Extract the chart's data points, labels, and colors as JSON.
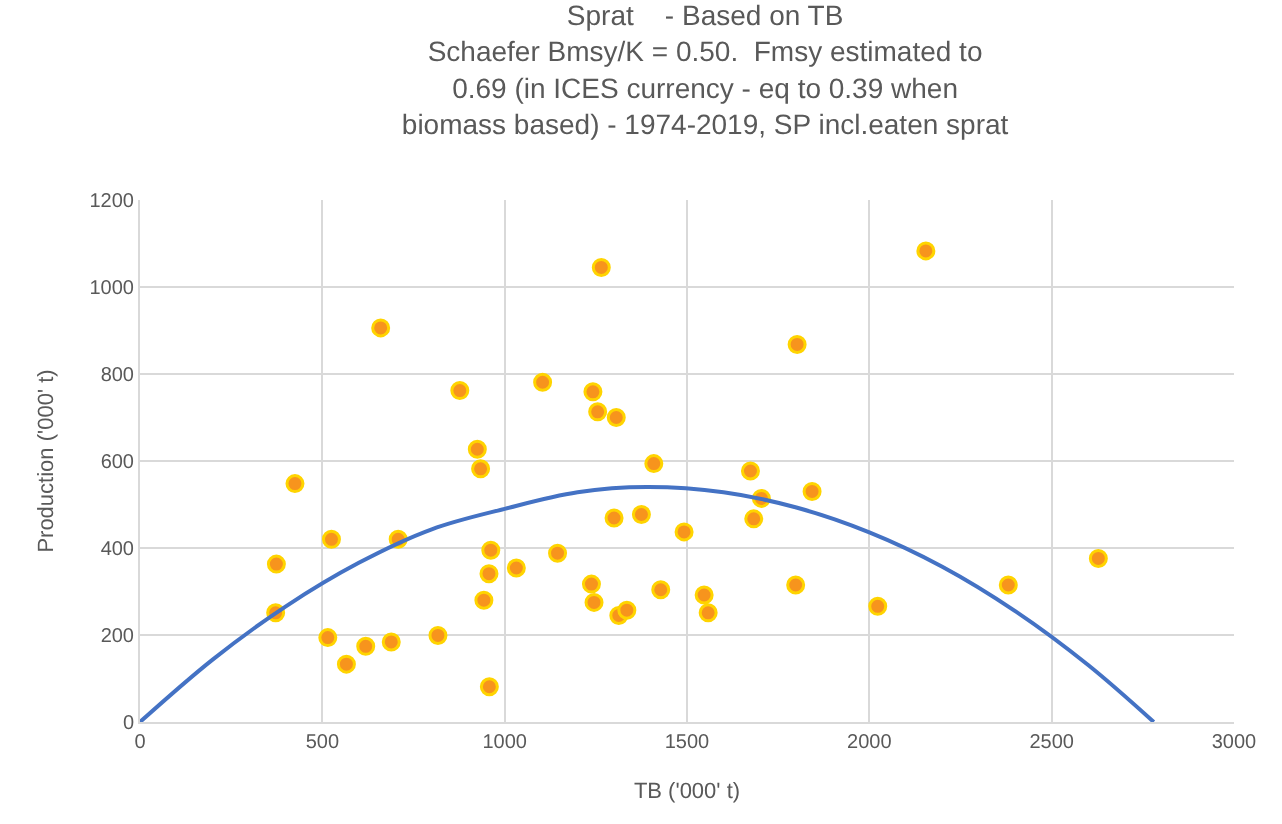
{
  "chart_data": {
    "type": "scatter",
    "title": "Sprat    - Based on TB\nSchaefer Bmsy/K = 0.50.  Fmsy estimated to\n0.69 (in ICES currency - eq to 0.39 when\nbiomass based) - 1974-2019, SP incl.eaten sprat",
    "xlabel": "TB ('000' t)",
    "ylabel": "Production ('000' t)",
    "xlim": [
      0,
      3000
    ],
    "xticks": [
      0,
      500,
      1000,
      1500,
      2000,
      2500,
      3000
    ],
    "ylim": [
      0,
      1200
    ],
    "yticks": [
      0,
      200,
      400,
      600,
      800,
      1000,
      1200
    ],
    "grid": true,
    "marker": "circle",
    "series": [
      {
        "color": "#f7941d",
        "x": [
          1265,
          660,
          877,
          1104,
          1242,
          1255,
          1306,
          925,
          934,
          425,
          1300,
          525,
          708,
          962,
          1145,
          957,
          1032,
          374,
          1238,
          1245,
          943,
          1313,
          1335,
          372,
          515,
          566,
          619,
          689,
          817,
          958,
          2155,
          1802,
          1409,
          1674,
          1704,
          1843,
          1375,
          1492,
          1683,
          1428,
          1547,
          1558,
          1798,
          2023,
          2381,
          2628
        ],
        "values": [
          1045,
          906,
          762,
          781,
          759,
          713,
          700,
          627,
          582,
          548,
          469,
          420,
          420,
          395,
          388,
          341,
          354,
          363,
          317,
          275,
          280,
          245,
          257,
          251,
          194,
          133,
          174,
          184,
          199,
          81,
          1083,
          868,
          594,
          577,
          514,
          530,
          477,
          437,
          467,
          304,
          292,
          251,
          315,
          266,
          315,
          376
        ]
      },
      {
        "type": "line",
        "color": "#4472c4",
        "marker": "none",
        "x": [
          0,
          200,
          400,
          600,
          800,
          1000,
          1200,
          1390,
          1600,
          1800,
          2000,
          2200,
          2400,
          2600,
          2780
        ],
        "values": [
          0,
          144,
          266,
          366,
          443,
          490,
          528,
          540,
          528,
          493,
          436,
          357,
          255,
          131,
          0
        ]
      }
    ]
  }
}
